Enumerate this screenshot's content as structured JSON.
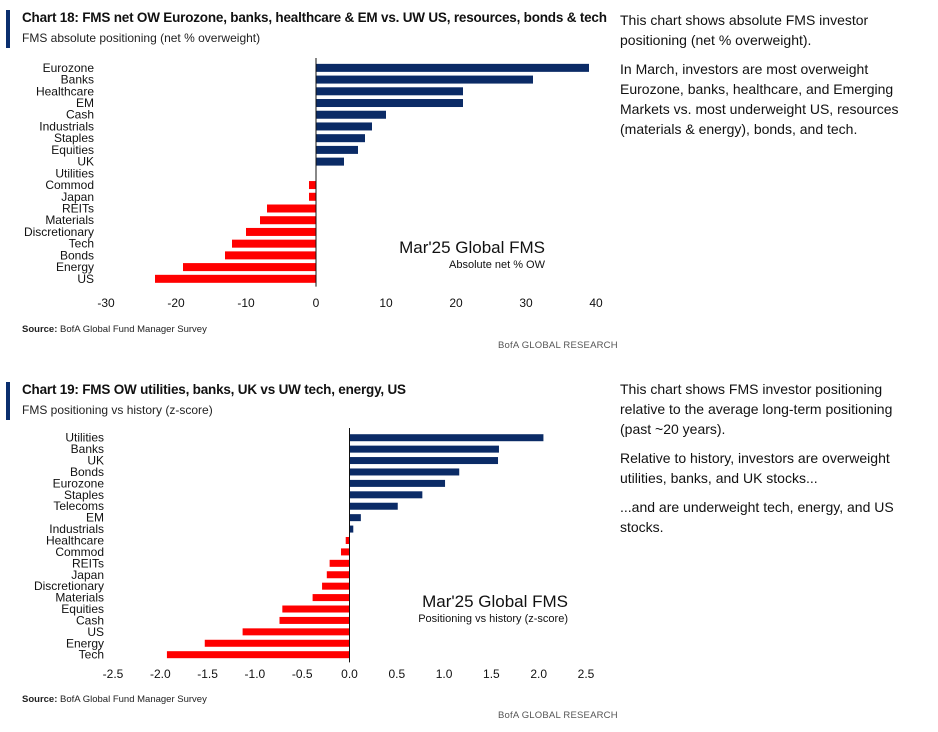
{
  "charts": [
    {
      "title": "Chart 18: FMS net OW Eurozone, banks, healthcare & EM vs. UW US, resources, bonds & tech",
      "subtitle": "FMS absolute positioning (net % overweight)",
      "annotation_title": "Mar'25 Global FMS",
      "annotation_sub": "Absolute net % OW",
      "source_label": "Source:",
      "source_text": "BofA Global Fund Manager Survey",
      "brand": "BofA GLOBAL RESEARCH",
      "side_text": [
        "This chart shows absolute FMS investor positioning (net % overweight).",
        "In March, investors are most overweight Eurozone, banks, healthcare, and Emerging Markets vs. most underweight US, resources (materials & energy), bonds, and tech."
      ]
    },
    {
      "title": "Chart 19: FMS OW utilities, banks, UK vs UW tech, energy, US",
      "subtitle": "FMS positioning vs history (z-score)",
      "annotation_title": "Mar'25 Global FMS",
      "annotation_sub": "Positioning vs history (z-score)",
      "source_label": "Source:",
      "source_text": "BofA Global Fund Manager Survey",
      "brand": "BofA GLOBAL RESEARCH",
      "side_text": [
        "This chart shows FMS investor positioning relative to the average long-term positioning (past ~20 years).",
        "Relative to history, investors are overweight utilities, banks, and UK stocks...",
        "...and are underweight tech, energy, and US stocks."
      ]
    }
  ],
  "chart_data": [
    {
      "type": "bar",
      "orientation": "horizontal",
      "categories": [
        "Eurozone",
        "Banks",
        "Healthcare",
        "EM",
        "Cash",
        "Industrials",
        "Staples",
        "Equities",
        "UK",
        "Utilities",
        "Commod",
        "Japan",
        "REITs",
        "Materials",
        "Discretionary",
        "Tech",
        "Bonds",
        "Energy",
        "US"
      ],
      "values": [
        39,
        31,
        21,
        21,
        10,
        8,
        7,
        6,
        4,
        0,
        -1,
        -1,
        -7,
        -8,
        -10,
        -12,
        -13,
        -19,
        -23
      ],
      "xlim": [
        -30,
        40
      ],
      "xticks": [
        -30,
        -20,
        -10,
        0,
        10,
        20,
        30,
        40
      ],
      "tick_labels": [
        "-30",
        "-20",
        "-10",
        "0",
        "10",
        "20",
        "30",
        "40"
      ],
      "positive_color": "#0b2b66",
      "negative_color": "#ff0000",
      "grid": false
    },
    {
      "type": "bar",
      "orientation": "horizontal",
      "categories": [
        "Utilities",
        "Banks",
        "UK",
        "Bonds",
        "Eurozone",
        "Staples",
        "Telecoms",
        "EM",
        "Industrials",
        "Healthcare",
        "Commod",
        "REITs",
        "Japan",
        "Discretionary",
        "Materials",
        "Equities",
        "Cash",
        "US",
        "Energy",
        "Tech"
      ],
      "values": [
        2.05,
        1.58,
        1.57,
        1.16,
        1.01,
        0.77,
        0.51,
        0.12,
        0.04,
        -0.04,
        -0.09,
        -0.21,
        -0.24,
        -0.29,
        -0.39,
        -0.71,
        -0.74,
        -1.13,
        -1.53,
        -1.93
      ],
      "xlim": [
        -2.5,
        2.5
      ],
      "xticks": [
        -2.5,
        -2.0,
        -1.5,
        -1.0,
        -0.5,
        0.0,
        0.5,
        1.0,
        1.5,
        2.0,
        2.5
      ],
      "tick_labels": [
        "-2.5",
        "-2.0",
        "-1.5",
        "-1.0",
        "-0.5",
        "0.0",
        "0.5",
        "1.0",
        "1.5",
        "2.0",
        "2.5"
      ],
      "positive_color": "#0b2b66",
      "negative_color": "#ff0000",
      "grid": false
    }
  ]
}
